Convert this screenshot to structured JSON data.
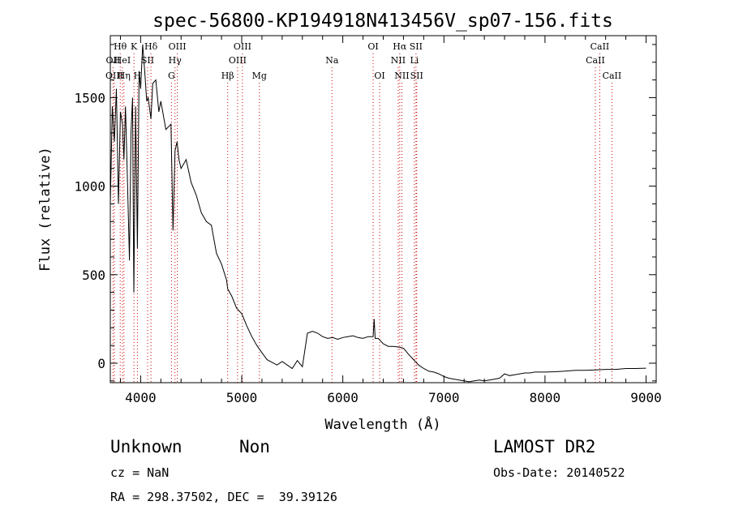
{
  "chart_data": {
    "type": "line",
    "title": "spec-56800-KP194918N413456V_sp07-156.fits",
    "xlabel": "Wavelength (Å)",
    "ylabel": "Flux (relative)",
    "xlim": [
      3700,
      9100
    ],
    "ylim": [
      -110,
      1850
    ],
    "x_ticks": [
      4000,
      5000,
      6000,
      7000,
      8000,
      9000
    ],
    "y_ticks": [
      0,
      500,
      1000,
      1500
    ],
    "grid": false,
    "line_color": "#000000",
    "marker_color": "#cc0000",
    "series": [
      {
        "x": [
          3700,
          3720,
          3740,
          3760,
          3780,
          3800,
          3820,
          3835,
          3850,
          3870,
          3889,
          3905,
          3920,
          3933,
          3950,
          3968,
          3985,
          4000,
          4020,
          4040,
          4060,
          4075,
          4102,
          4120,
          4150,
          4180,
          4200,
          4250,
          4300,
          4320,
          4340,
          4360,
          4380,
          4400,
          4450,
          4500,
          4550,
          4600,
          4650,
          4700,
          4750,
          4800,
          4850,
          4861,
          4900,
          4950,
          5000,
          5050,
          5100,
          5150,
          5200,
          5250,
          5300,
          5350,
          5400,
          5450,
          5500,
          5550,
          5600,
          5650,
          5700,
          5750,
          5800,
          5850,
          5900,
          5950,
          6000,
          6050,
          6100,
          6150,
          6200,
          6250,
          6300,
          6310,
          6320,
          6350,
          6400,
          6450,
          6500,
          6563,
          6600,
          6650,
          6700,
          6750,
          6800,
          6850,
          6900,
          6950,
          7000,
          7050,
          7100,
          7150,
          7200,
          7250,
          7300,
          7350,
          7400,
          7450,
          7500,
          7550,
          7600,
          7650,
          7700,
          7750,
          7800,
          7850,
          7900,
          7950,
          8000,
          8100,
          8200,
          8300,
          8400,
          8500,
          8600,
          8700,
          8800,
          8900,
          9000
        ],
        "values": [
          900,
          1450,
          1250,
          1550,
          900,
          1420,
          1350,
          1150,
          1450,
          1020,
          580,
          1300,
          1500,
          400,
          1450,
          650,
          1650,
          1550,
          1800,
          1650,
          1480,
          1500,
          1380,
          1580,
          1600,
          1420,
          1480,
          1320,
          1350,
          750,
          1200,
          1250,
          1150,
          1100,
          1150,
          1020,
          950,
          850,
          800,
          780,
          620,
          560,
          470,
          420,
          380,
          310,
          280,
          210,
          150,
          100,
          60,
          20,
          5,
          -10,
          10,
          -10,
          -30,
          15,
          -20,
          170,
          180,
          170,
          150,
          140,
          145,
          135,
          145,
          150,
          155,
          145,
          140,
          150,
          150,
          250,
          140,
          140,
          110,
          95,
          95,
          90,
          85,
          50,
          20,
          -10,
          -30,
          -45,
          -50,
          -60,
          -75,
          -85,
          -90,
          -95,
          -100,
          -105,
          -100,
          -95,
          -100,
          -95,
          -90,
          -85,
          -60,
          -70,
          -65,
          -60,
          -55,
          -55,
          -50,
          -50,
          -50,
          -48,
          -45,
          -40,
          -40,
          -38,
          -35,
          -35,
          -30,
          -30,
          -28
        ]
      }
    ],
    "line_markers": [
      {
        "label": "Hθ",
        "x": 3798,
        "row": 0
      },
      {
        "label": "OII",
        "x": 3727,
        "row": 1
      },
      {
        "label": "HeI",
        "x": 3820,
        "row": 1
      },
      {
        "label": "OIII",
        "x": 3740,
        "row": 2
      },
      {
        "label": "Hη",
        "x": 3835,
        "row": 2
      },
      {
        "label": "K",
        "x": 3934,
        "row": 0
      },
      {
        "label": "SII",
        "x": 4069,
        "row": 1
      },
      {
        "label": "H",
        "x": 3968,
        "row": 2
      },
      {
        "label": "Hδ",
        "x": 4102,
        "row": 0
      },
      {
        "label": "OIII",
        "x": 4363,
        "row": 0
      },
      {
        "label": "Hγ",
        "x": 4340,
        "row": 1
      },
      {
        "label": "G",
        "x": 4305,
        "row": 2
      },
      {
        "label": "Hβ",
        "x": 4861,
        "row": 2
      },
      {
        "label": "OIII",
        "x": 5007,
        "row": 0
      },
      {
        "label": "OIII",
        "x": 4959,
        "row": 1
      },
      {
        "label": "Mg",
        "x": 5175,
        "row": 2
      },
      {
        "label": "Na",
        "x": 5893,
        "row": 1
      },
      {
        "label": "OI",
        "x": 6300,
        "row": 0
      },
      {
        "label": "OI",
        "x": 6364,
        "row": 2
      },
      {
        "label": "Hα",
        "x": 6563,
        "row": 0
      },
      {
        "label": "SII",
        "x": 6724,
        "row": 0
      },
      {
        "label": "NII",
        "x": 6548,
        "row": 1
      },
      {
        "label": "Li",
        "x": 6708,
        "row": 1
      },
      {
        "label": "NII",
        "x": 6584,
        "row": 2
      },
      {
        "label": "SII",
        "x": 6731,
        "row": 2
      },
      {
        "label": "CaII",
        "x": 8542,
        "row": 0
      },
      {
        "label": "CaII",
        "x": 8498,
        "row": 1
      },
      {
        "label": "CaII",
        "x": 8662,
        "row": 2
      }
    ]
  },
  "info": {
    "class_label": "Unknown",
    "subclass_label": "Non",
    "survey_label": "LAMOST DR2",
    "redshift_text": "cz = NaN",
    "obs_date_text": "Obs-Date: 20140522",
    "coords_text": "RA = 298.37502, DEC =  39.39126"
  }
}
